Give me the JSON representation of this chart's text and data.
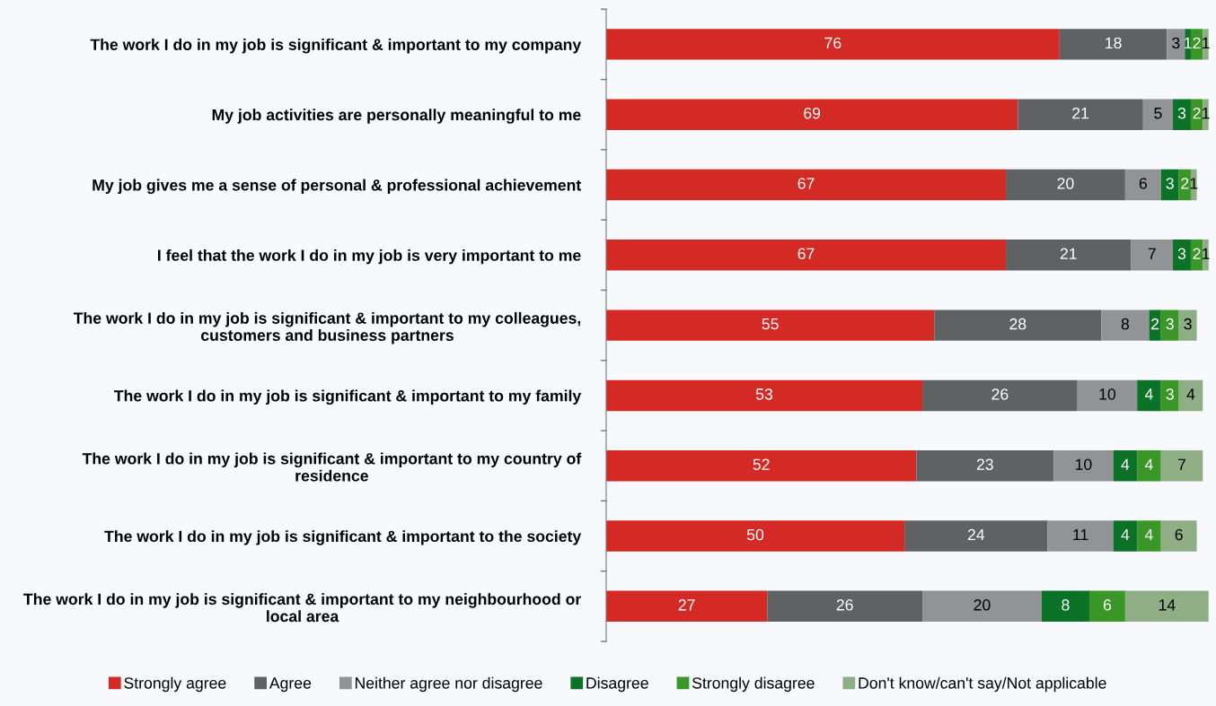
{
  "chart_data": {
    "type": "bar",
    "orientation": "horizontal",
    "stacked": true,
    "data_labels": true,
    "legend": "bottom",
    "grid": false,
    "categories": [
      "The work I do in my job is significant & important to my company",
      "My job activities are personally meaningful to me",
      "My job gives me a sense of personal & professional achievement",
      "I feel that the work I do in my job is very important to me",
      "The work I do in my job is significant & important to my colleagues, customers and business partners",
      "The work I do in my job is significant & important to my family",
      "The work I do in my job is significant & important to my country of residence",
      "The work I do in my job is significant & important to the society",
      "The work I do in my job is significant & important to my neighbourhood or local area"
    ],
    "series": [
      {
        "name": "Strongly agree",
        "color": "#d42a25",
        "values": [
          76,
          69,
          67,
          67,
          55,
          53,
          52,
          50,
          27
        ]
      },
      {
        "name": "Agree",
        "color": "#606163",
        "values": [
          18,
          21,
          20,
          21,
          28,
          26,
          23,
          24,
          26
        ]
      },
      {
        "name": "Neither agree nor disagree",
        "color": "#929397",
        "values": [
          3,
          5,
          6,
          7,
          8,
          10,
          10,
          11,
          20
        ]
      },
      {
        "name": "Disagree",
        "color": "#0b7228",
        "values": [
          1,
          3,
          3,
          3,
          2,
          4,
          4,
          4,
          8
        ]
      },
      {
        "name": "Strongly disagree",
        "color": "#3a9627",
        "values": [
          2,
          2,
          2,
          2,
          3,
          3,
          4,
          4,
          6
        ]
      },
      {
        "name": "Don't know/can't say/Not applicable",
        "color": "#8fae85",
        "values": [
          1,
          1,
          1,
          1,
          3,
          4,
          7,
          6,
          14
        ]
      }
    ]
  }
}
